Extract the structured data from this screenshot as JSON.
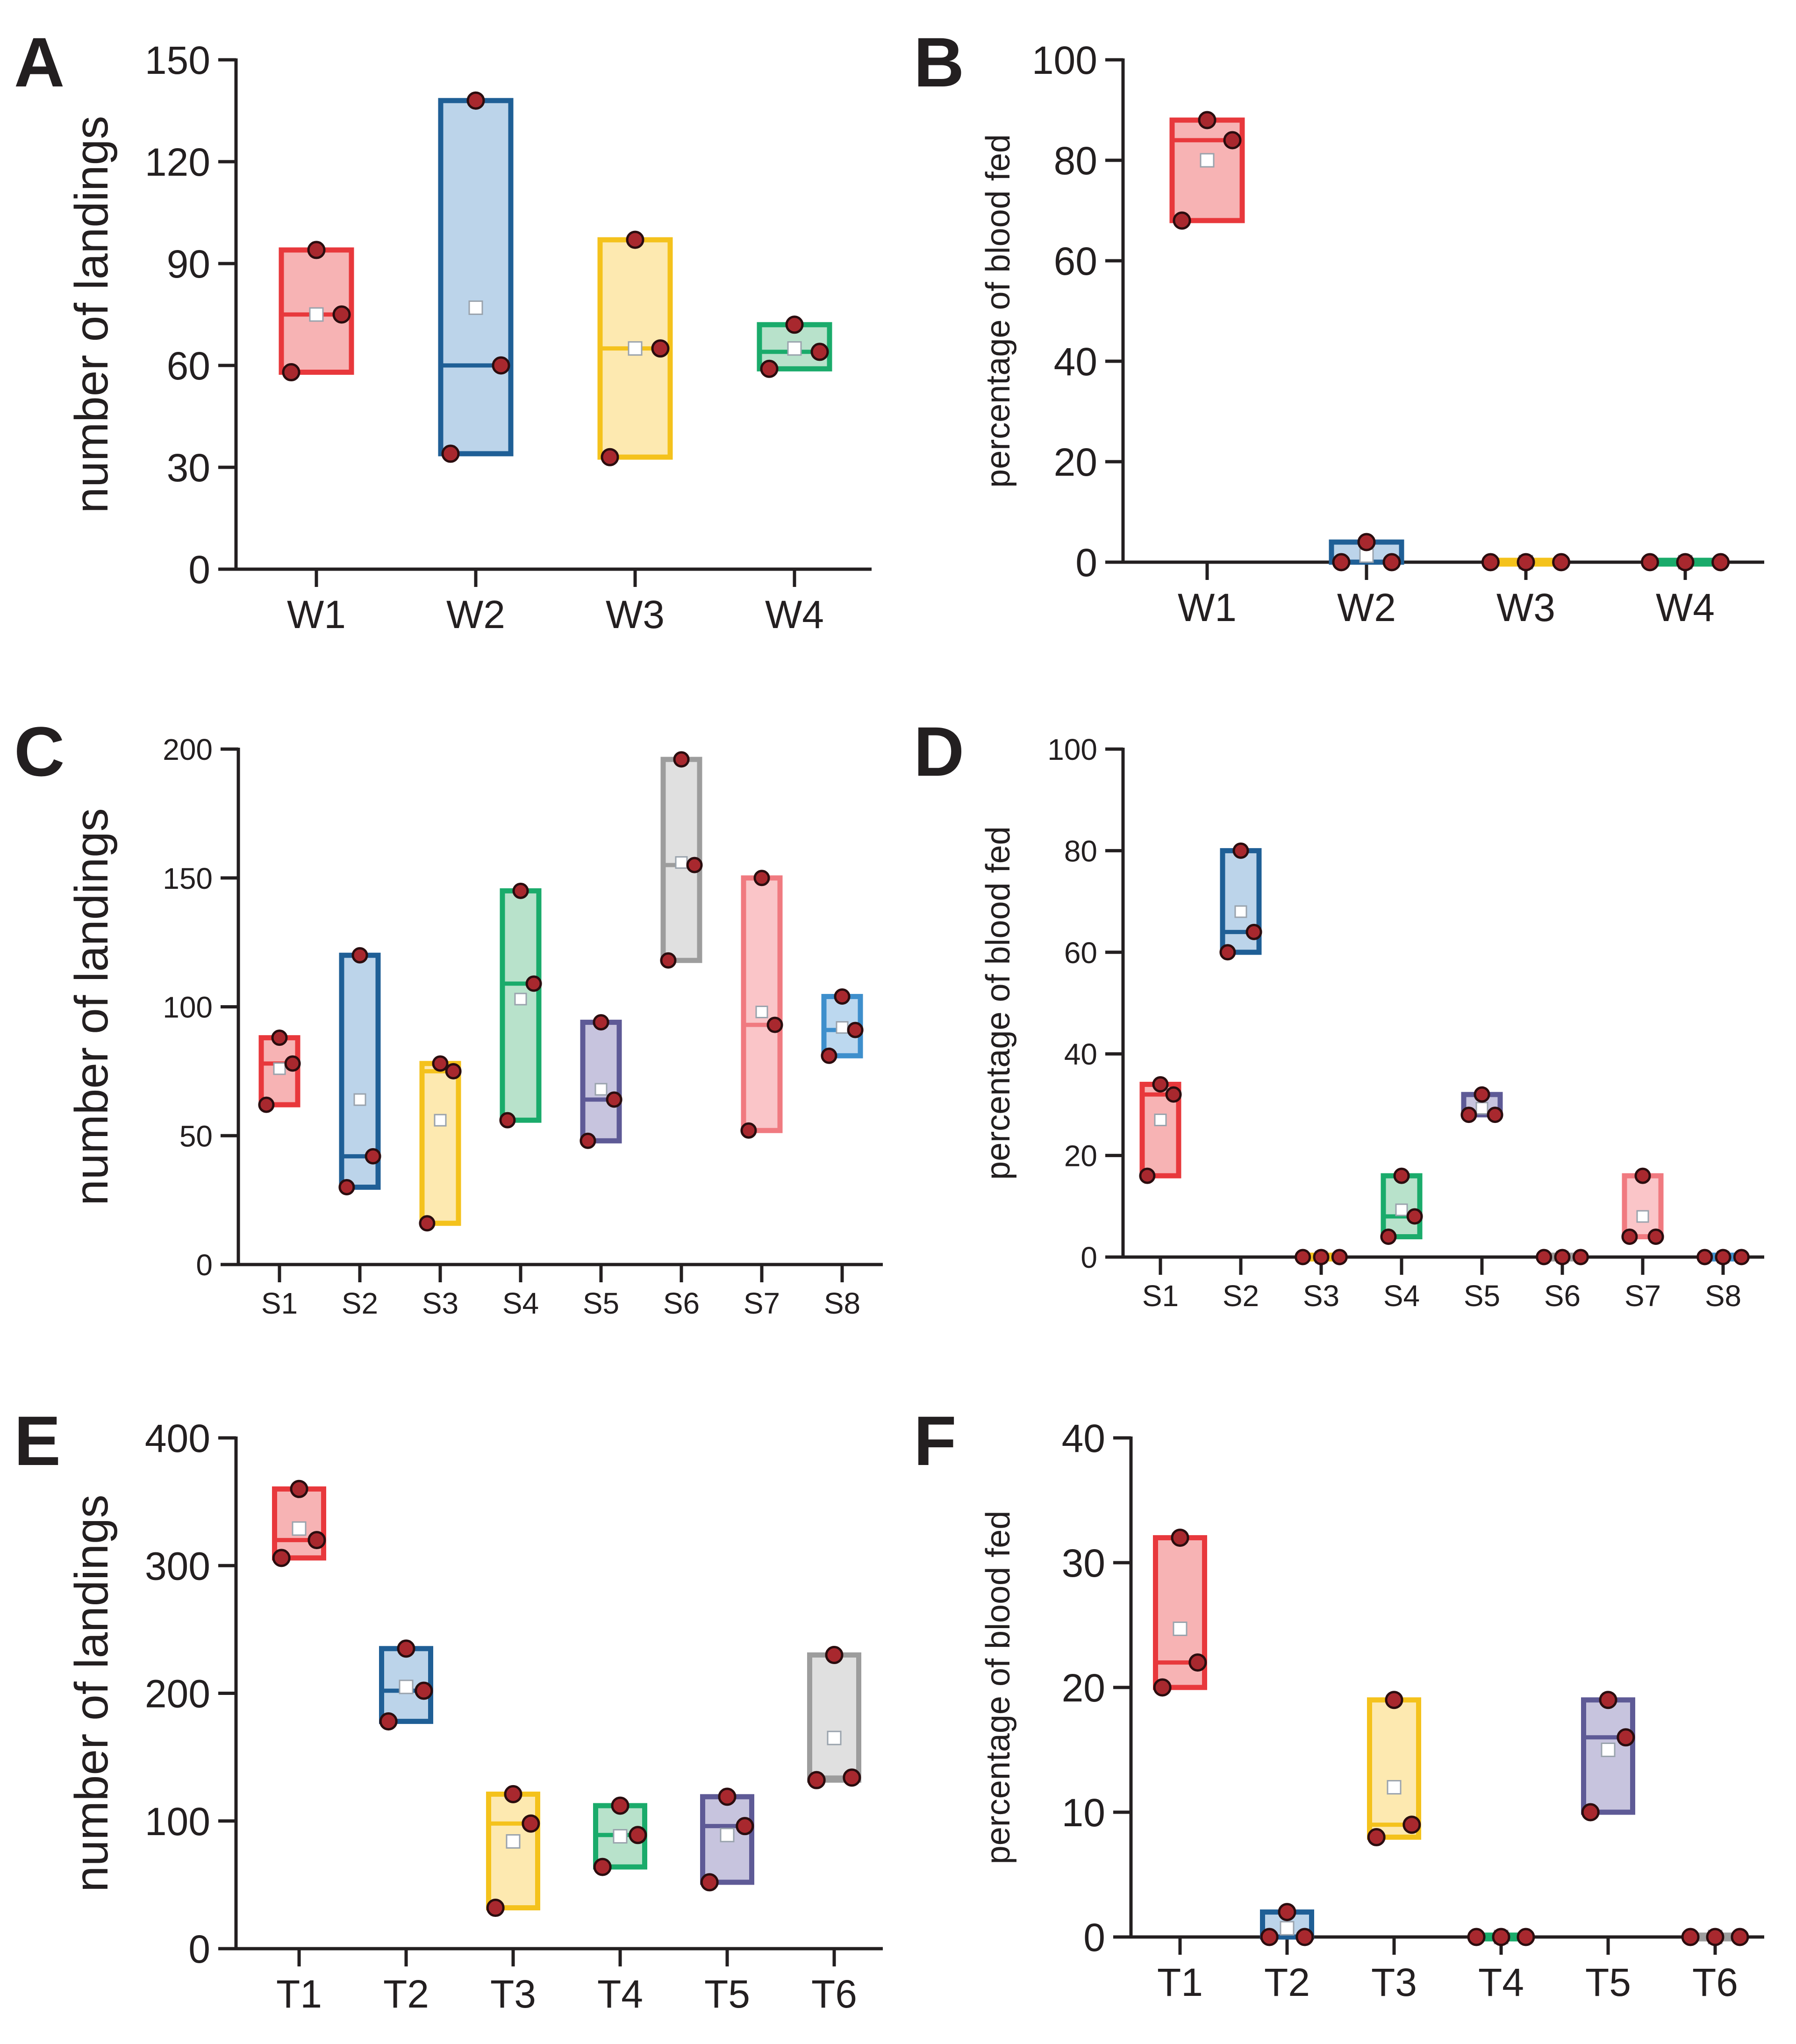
{
  "chart_data": [
    {
      "panel": "A",
      "type": "box",
      "ylabel": "number of landings",
      "ylim": [
        0,
        150
      ],
      "yticks": [
        0,
        30,
        60,
        90,
        120,
        150
      ],
      "boxes": [
        {
          "label": "W1",
          "color": "#e8383c",
          "fill": "#f7b3b4",
          "low": 58,
          "high": 94,
          "median": 75,
          "mean": 75,
          "points": [
            94,
            75,
            58
          ]
        },
        {
          "label": "W2",
          "color": "#1f5f96",
          "fill": "#bcd4ea",
          "low": 34,
          "high": 138,
          "median": 60,
          "mean": 77,
          "points": [
            138,
            60,
            34
          ]
        },
        {
          "label": "W3",
          "color": "#f4c21c",
          "fill": "#fde9b0",
          "low": 33,
          "high": 97,
          "median": 65,
          "mean": 65,
          "points": [
            97,
            65,
            33
          ]
        },
        {
          "label": "W4",
          "color": "#1aab6b",
          "fill": "#b8e2cb",
          "low": 59,
          "high": 72,
          "median": 64,
          "mean": 65,
          "points": [
            72,
            64,
            59
          ]
        }
      ]
    },
    {
      "panel": "B",
      "type": "box",
      "ylabel": "percentage of blood fed",
      "ylim": [
        0,
        100
      ],
      "yticks": [
        0,
        20,
        40,
        60,
        80,
        100
      ],
      "boxes": [
        {
          "label": "W1",
          "color": "#e8383c",
          "fill": "#f7b3b4",
          "low": 68,
          "high": 88,
          "median": 84,
          "mean": 80,
          "points": [
            88,
            84,
            68
          ]
        },
        {
          "label": "W2",
          "color": "#1f5f96",
          "fill": "#bcd4ea",
          "low": 0,
          "high": 4,
          "median": 0,
          "mean": 1.3,
          "points": [
            4,
            0,
            0
          ]
        },
        {
          "label": "W3",
          "color": "#f4c21c",
          "fill": "#fde9b0",
          "low": 0,
          "high": 0,
          "median": 0,
          "mean": 0,
          "points": [
            0,
            0,
            0
          ]
        },
        {
          "label": "W4",
          "color": "#1aab6b",
          "fill": "#b8e2cb",
          "low": 0,
          "high": 0,
          "median": 0,
          "mean": 0,
          "points": [
            0,
            0,
            0
          ]
        }
      ]
    },
    {
      "panel": "C",
      "type": "box",
      "ylabel": "number of landings",
      "ylim": [
        0,
        200
      ],
      "yticks": [
        0,
        50,
        100,
        150,
        200
      ],
      "boxes": [
        {
          "label": "S1",
          "color": "#e8383c",
          "fill": "#f7b3b4",
          "low": 62,
          "high": 88,
          "median": 78,
          "mean": 76,
          "points": [
            88,
            78,
            62
          ]
        },
        {
          "label": "S2",
          "color": "#1f5f96",
          "fill": "#bcd4ea",
          "low": 30,
          "high": 120,
          "median": 42,
          "mean": 64,
          "points": [
            120,
            42,
            30
          ]
        },
        {
          "label": "S3",
          "color": "#f4c21c",
          "fill": "#fde9b0",
          "low": 16,
          "high": 78,
          "median": 75,
          "mean": 56,
          "points": [
            78,
            75,
            16
          ]
        },
        {
          "label": "S4",
          "color": "#1aab6b",
          "fill": "#b8e2cb",
          "low": 56,
          "high": 145,
          "median": 109,
          "mean": 103,
          "points": [
            145,
            109,
            56
          ]
        },
        {
          "label": "S5",
          "color": "#5e5a96",
          "fill": "#c7c4de",
          "low": 48,
          "high": 94,
          "median": 64,
          "mean": 68,
          "points": [
            94,
            64,
            48
          ]
        },
        {
          "label": "S6",
          "color": "#9d9d9d",
          "fill": "#e0e0e0",
          "low": 118,
          "high": 196,
          "median": 155,
          "mean": 156,
          "points": [
            196,
            155,
            118
          ]
        },
        {
          "label": "S7",
          "color": "#f07a80",
          "fill": "#fac5c8",
          "low": 52,
          "high": 150,
          "median": 93,
          "mean": 98,
          "points": [
            150,
            93,
            52
          ]
        },
        {
          "label": "S8",
          "color": "#3e8fcc",
          "fill": "#bcd8ef",
          "low": 81,
          "high": 104,
          "median": 91,
          "mean": 92,
          "points": [
            104,
            91,
            81
          ]
        }
      ]
    },
    {
      "panel": "D",
      "type": "box",
      "ylabel": "percentage of blood fed",
      "ylim": [
        0,
        100
      ],
      "yticks": [
        0,
        20,
        40,
        60,
        80,
        100
      ],
      "boxes": [
        {
          "label": "S1",
          "color": "#e8383c",
          "fill": "#f7b3b4",
          "low": 16,
          "high": 34,
          "median": 32,
          "mean": 27,
          "points": [
            34,
            32,
            16
          ]
        },
        {
          "label": "S2",
          "color": "#1f5f96",
          "fill": "#bcd4ea",
          "low": 60,
          "high": 80,
          "median": 64,
          "mean": 68,
          "points": [
            80,
            64,
            60
          ]
        },
        {
          "label": "S3",
          "color": "#f4c21c",
          "fill": "#fde9b0",
          "low": 0,
          "high": 0,
          "median": 0,
          "mean": 0,
          "points": [
            0,
            0,
            0
          ]
        },
        {
          "label": "S4",
          "color": "#1aab6b",
          "fill": "#b8e2cb",
          "low": 4,
          "high": 16,
          "median": 8,
          "mean": 9.3,
          "points": [
            16,
            8,
            4
          ]
        },
        {
          "label": "S5",
          "color": "#5e5a96",
          "fill": "#c7c4de",
          "low": 28,
          "high": 32,
          "median": 28,
          "mean": 29.3,
          "points": [
            32,
            28,
            28
          ]
        },
        {
          "label": "S6",
          "color": "#9d9d9d",
          "fill": "#e0e0e0",
          "low": 0,
          "high": 0,
          "median": 0,
          "mean": 0,
          "points": [
            0,
            0,
            0
          ]
        },
        {
          "label": "S7",
          "color": "#f07a80",
          "fill": "#fac5c8",
          "low": 4,
          "high": 16,
          "median": 4,
          "mean": 8,
          "points": [
            16,
            4,
            4
          ]
        },
        {
          "label": "S8",
          "color": "#3e8fcc",
          "fill": "#bcd8ef",
          "low": 0,
          "high": 0,
          "median": 0,
          "mean": 0,
          "points": [
            0,
            0,
            0
          ]
        }
      ]
    },
    {
      "panel": "E",
      "type": "box",
      "ylabel": "number of landings",
      "ylim": [
        0,
        400
      ],
      "yticks": [
        0,
        100,
        200,
        300,
        400
      ],
      "boxes": [
        {
          "label": "T1",
          "color": "#e8383c",
          "fill": "#f7b3b4",
          "low": 306,
          "high": 360,
          "median": 320,
          "mean": 329,
          "points": [
            360,
            320,
            306
          ]
        },
        {
          "label": "T2",
          "color": "#1f5f96",
          "fill": "#bcd4ea",
          "low": 178,
          "high": 235,
          "median": 202,
          "mean": 205,
          "points": [
            235,
            202,
            178
          ]
        },
        {
          "label": "T3",
          "color": "#f4c21c",
          "fill": "#fde9b0",
          "low": 32,
          "high": 121,
          "median": 98,
          "mean": 84,
          "points": [
            121,
            98,
            32
          ]
        },
        {
          "label": "T4",
          "color": "#1aab6b",
          "fill": "#b8e2cb",
          "low": 64,
          "high": 112,
          "median": 89,
          "mean": 88,
          "points": [
            112,
            89,
            64
          ]
        },
        {
          "label": "T5",
          "color": "#5e5a96",
          "fill": "#c7c4de",
          "low": 52,
          "high": 119,
          "median": 96,
          "mean": 89,
          "points": [
            119,
            96,
            52
          ]
        },
        {
          "label": "T6",
          "color": "#9d9d9d",
          "fill": "#e0e0e0",
          "low": 132,
          "high": 230,
          "median": 134,
          "mean": 165,
          "points": [
            230,
            134,
            132
          ]
        }
      ]
    },
    {
      "panel": "F",
      "type": "box",
      "ylabel": "percentage of blood fed",
      "ylim": [
        0,
        40
      ],
      "yticks": [
        0,
        10,
        20,
        30,
        40
      ],
      "boxes": [
        {
          "label": "T1",
          "color": "#e8383c",
          "fill": "#f7b3b4",
          "low": 20,
          "high": 32,
          "median": 22,
          "mean": 24.7,
          "points": [
            32,
            22,
            20
          ]
        },
        {
          "label": "T2",
          "color": "#1f5f96",
          "fill": "#bcd4ea",
          "low": 0,
          "high": 2,
          "median": 0,
          "mean": 0.7,
          "points": [
            2,
            0,
            0
          ]
        },
        {
          "label": "T3",
          "color": "#f4c21c",
          "fill": "#fde9b0",
          "low": 8,
          "high": 19,
          "median": 9,
          "mean": 12,
          "points": [
            19,
            9,
            8
          ]
        },
        {
          "label": "T4",
          "color": "#1aab6b",
          "fill": "#b8e2cb",
          "low": 0,
          "high": 0,
          "median": 0,
          "mean": 0,
          "points": [
            0,
            0,
            0
          ]
        },
        {
          "label": "T5",
          "color": "#5e5a96",
          "fill": "#c7c4de",
          "low": 10,
          "high": 19,
          "median": 16,
          "mean": 15,
          "points": [
            19,
            16,
            10
          ]
        },
        {
          "label": "T6",
          "color": "#9d9d9d",
          "fill": "#e0e0e0",
          "low": 0,
          "high": 0,
          "median": 0,
          "mean": 0,
          "points": [
            0,
            0,
            0
          ]
        }
      ]
    }
  ]
}
